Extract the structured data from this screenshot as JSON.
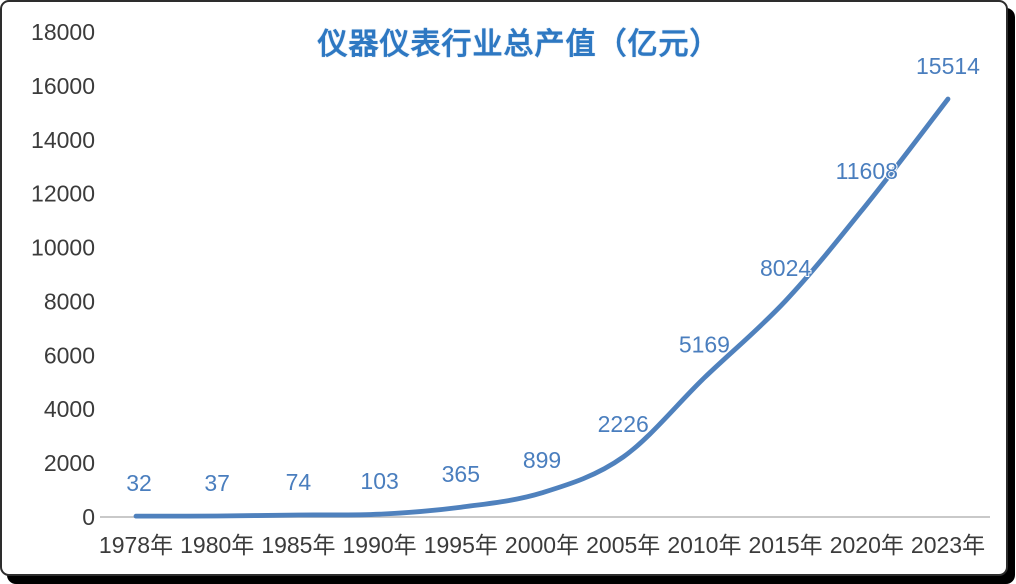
{
  "chart_data": {
    "type": "line",
    "title": "仪器仪表行业总产值（亿元）",
    "categories": [
      "1978年",
      "1980年",
      "1985年",
      "1990年",
      "1995年",
      "2000年",
      "2005年",
      "2010年",
      "2015年",
      "2020年",
      "2023年"
    ],
    "values": [
      32,
      37,
      74,
      103,
      365,
      899,
      2226,
      5169,
      8024,
      11608,
      15514
    ],
    "ylim": [
      0,
      18000
    ],
    "ytick_interval": 2000,
    "yticks": [
      0,
      2000,
      4000,
      6000,
      8000,
      10000,
      12000,
      14000,
      16000,
      18000
    ],
    "grid": false,
    "legend": "none",
    "smooth_line": true,
    "data_labels_shown": true,
    "colors": {
      "line": "#4f81bd",
      "data_label": "#4a7ebe",
      "title": "#2e78c2",
      "axis_text": "#3b3b3b",
      "axis_line": "#c9c9c9",
      "frame_border": "#2d2d2d",
      "frame_shadow": "#000000",
      "background": "#ffffff"
    }
  }
}
